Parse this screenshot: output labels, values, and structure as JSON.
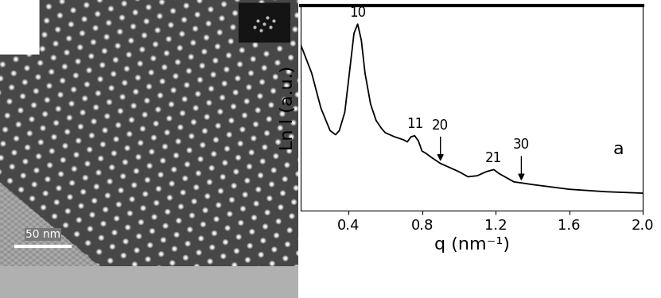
{
  "chart_data": {
    "type": "line",
    "x_label": "q (nm⁻¹)",
    "y_label": "Ln I (a.u.)",
    "x": [
      0.14,
      0.2,
      0.25,
      0.3,
      0.33,
      0.35,
      0.38,
      0.41,
      0.43,
      0.45,
      0.47,
      0.49,
      0.52,
      0.55,
      0.58,
      0.6,
      0.65,
      0.7,
      0.72,
      0.74,
      0.76,
      0.78,
      0.8,
      0.82,
      0.85,
      0.9,
      1.0,
      1.05,
      1.1,
      1.15,
      1.19,
      1.22,
      1.3,
      1.34,
      1.4,
      1.6,
      1.8,
      2.0
    ],
    "values": [
      8.1,
      6.7,
      5.0,
      3.9,
      3.7,
      3.9,
      4.8,
      7.1,
      8.65,
      9.1,
      8.3,
      6.7,
      5.2,
      4.4,
      4.0,
      3.8,
      3.6,
      3.45,
      3.35,
      3.6,
      3.65,
      3.4,
      2.9,
      2.8,
      2.6,
      2.3,
      1.9,
      1.65,
      1.7,
      1.9,
      2.0,
      1.8,
      1.4,
      1.35,
      1.27,
      1.04,
      0.92,
      0.85
    ],
    "color": "#000000",
    "xlim": [
      0.14,
      2.0
    ],
    "xticks": [
      0.4,
      0.8,
      1.2,
      1.6,
      2.0
    ],
    "ylim": [
      0,
      10
    ],
    "tick_labels": "x",
    "annotations": [
      {
        "text": "10",
        "x": 0.45
      },
      {
        "text": "11",
        "x": 0.76
      },
      {
        "text": "21",
        "x": 1.19
      }
    ],
    "arrows": [
      {
        "text": "20",
        "x": 0.9
      },
      {
        "text": "30",
        "x": 1.34
      }
    ],
    "panel_label": "a"
  },
  "micrograph": {
    "scale_bar": "50 nm"
  }
}
